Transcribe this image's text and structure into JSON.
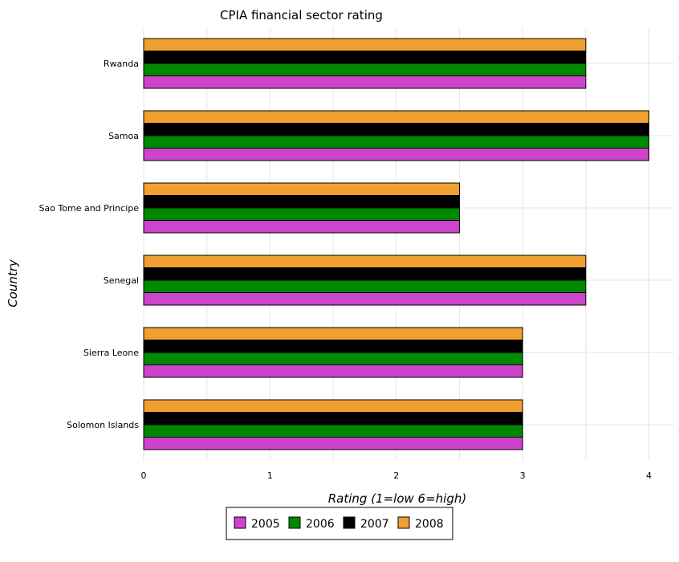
{
  "chart_data": {
    "type": "bar",
    "orientation": "horizontal",
    "title": "CPIA financial sector rating",
    "xlabel": "Rating (1=low 6=high)",
    "ylabel": "Country",
    "xlim": [
      0,
      4.2
    ],
    "xticks": [
      "0",
      "1",
      "2",
      "3",
      "4"
    ],
    "grid": true,
    "legend_position": "bottom-center",
    "categories": [
      "Rwanda",
      "Samoa",
      "Sao Tome and Principe",
      "Senegal",
      "Sierra Leone",
      "Solomon Islands"
    ],
    "series": [
      {
        "name": "2005",
        "color": "#cc44cc",
        "values": [
          3.5,
          4.0,
          2.5,
          3.5,
          3.0,
          3.0
        ]
      },
      {
        "name": "2006",
        "color": "#008800",
        "values": [
          3.5,
          4.0,
          2.5,
          3.5,
          3.0,
          3.0
        ]
      },
      {
        "name": "2007",
        "color": "#000000",
        "values": [
          3.5,
          4.0,
          2.5,
          3.5,
          3.0,
          3.0
        ]
      },
      {
        "name": "2008",
        "color": "#f0a030",
        "values": [
          3.5,
          4.0,
          2.5,
          3.5,
          3.0,
          3.0
        ]
      }
    ]
  }
}
